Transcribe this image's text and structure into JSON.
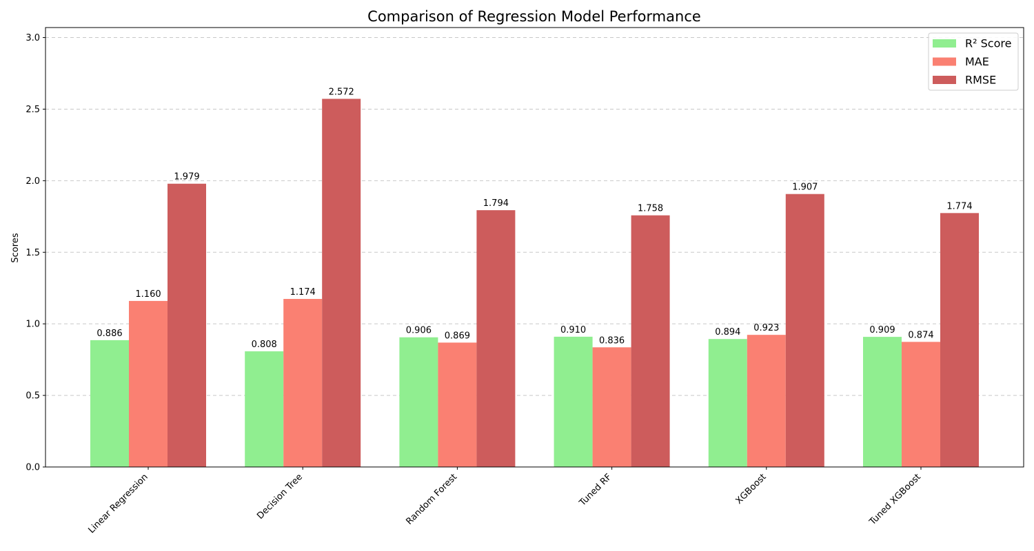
{
  "chart_data": {
    "type": "bar",
    "title": "Comparison of Regression Model Performance",
    "xlabel": "",
    "ylabel": "Scores",
    "ylim": [
      0,
      3.07
    ],
    "yticks": [
      "0.0",
      "0.5",
      "1.0",
      "1.5",
      "2.0",
      "2.5",
      "3.0"
    ],
    "grid": "horizontal-dashed",
    "legend_position": "top-right",
    "categories": [
      "Linear Regression",
      "Decision Tree",
      "Random Forest",
      "Tuned RF",
      "XGBoost",
      "Tuned XGBoost"
    ],
    "series": [
      {
        "name": "R² Score",
        "color": "#90ee90",
        "values": [
          0.886,
          0.808,
          0.906,
          0.91,
          0.894,
          0.909
        ],
        "labels": [
          "0.886",
          "0.808",
          "0.906",
          "0.910",
          "0.894",
          "0.909"
        ]
      },
      {
        "name": "MAE",
        "color": "#fa8072",
        "values": [
          1.16,
          1.174,
          0.869,
          0.836,
          0.923,
          0.874
        ],
        "labels": [
          "1.160",
          "1.174",
          "0.869",
          "0.836",
          "0.923",
          "0.874"
        ]
      },
      {
        "name": "RMSE",
        "color": "#cd5c5c",
        "values": [
          1.979,
          2.572,
          1.794,
          1.758,
          1.907,
          1.774
        ],
        "labels": [
          "1.979",
          "2.572",
          "1.794",
          "1.758",
          "1.907",
          "1.774"
        ]
      }
    ]
  }
}
